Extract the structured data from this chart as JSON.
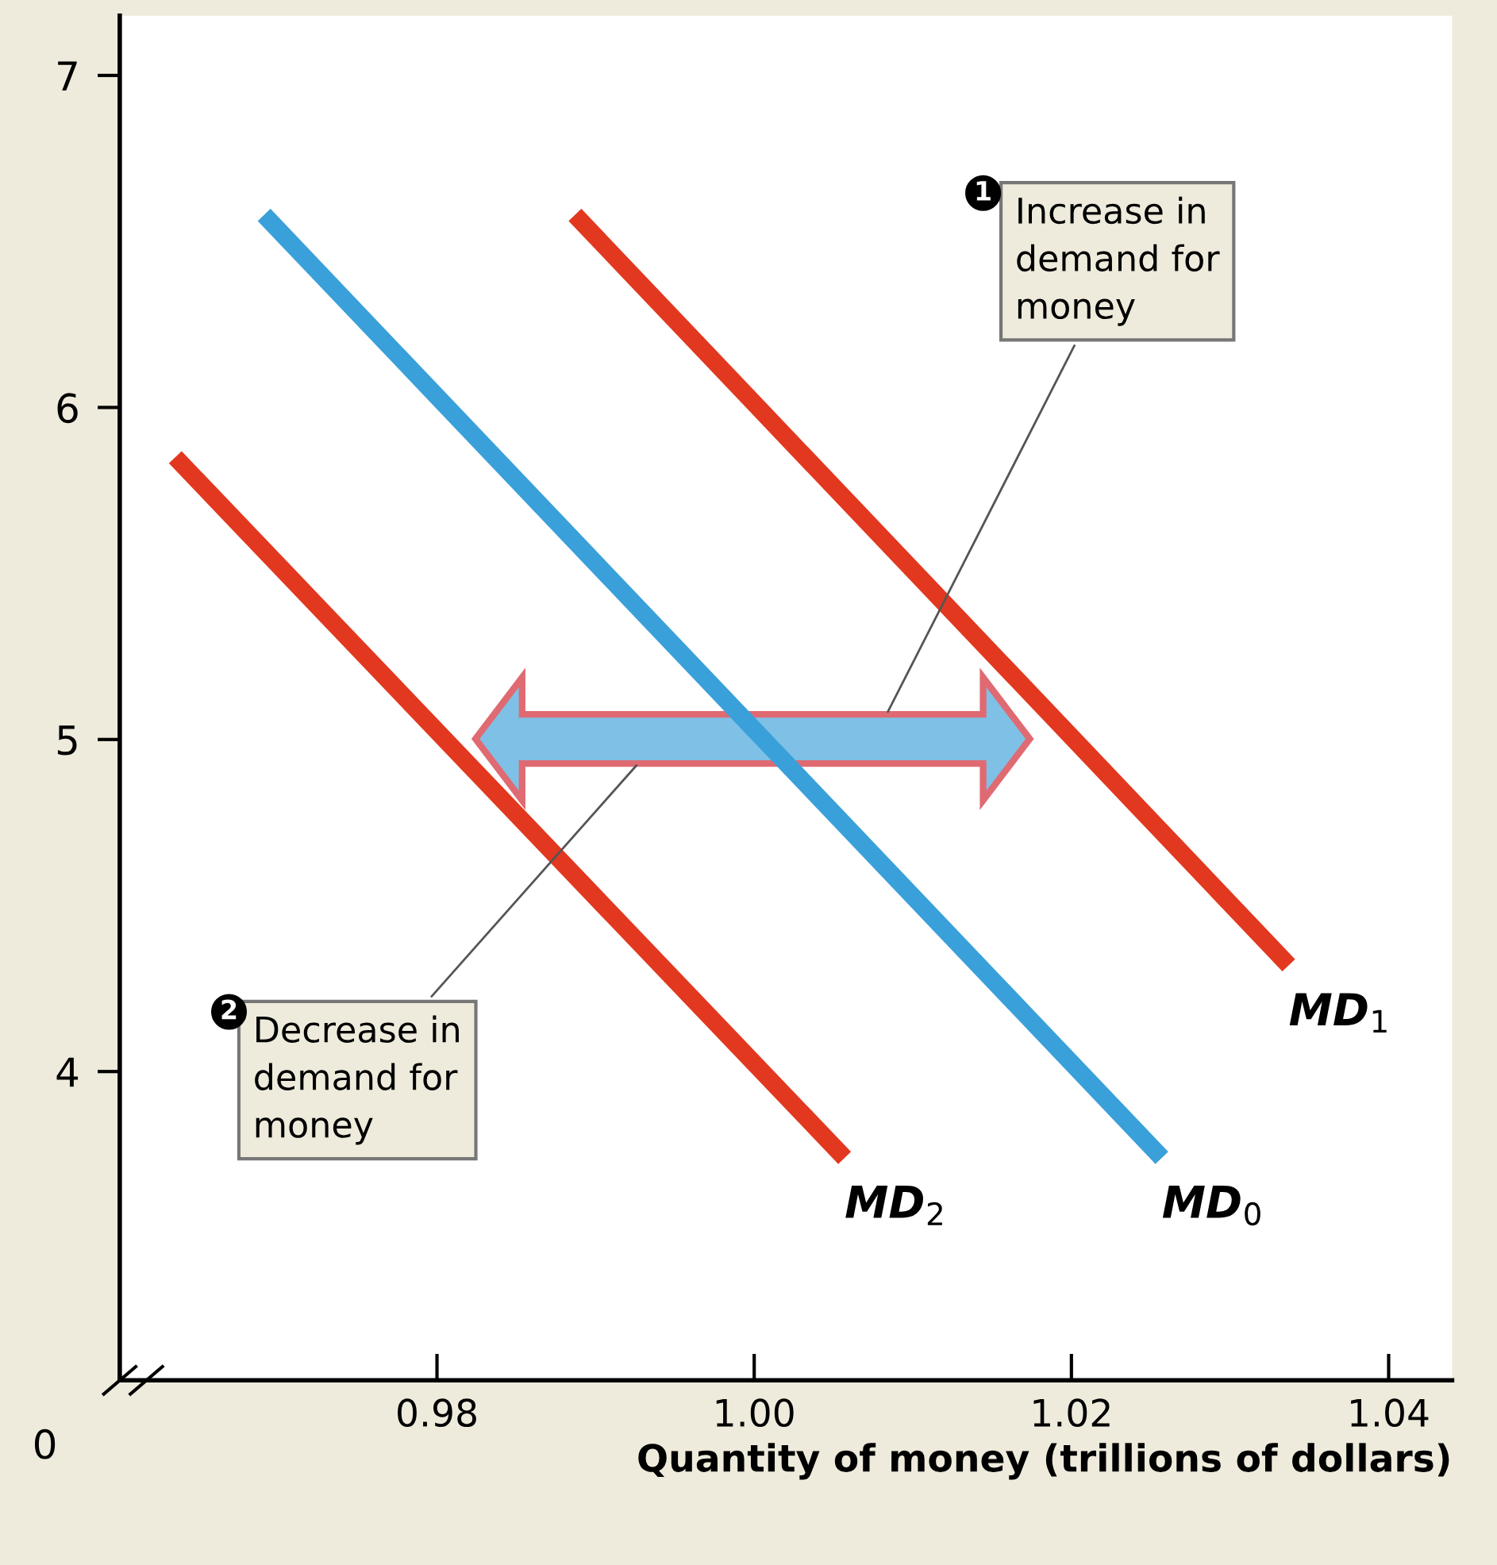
{
  "chart_data": {
    "type": "line",
    "xlabel": "Quantity of money (trillions of dollars)",
    "xlim": [
      0.96,
      1.044
    ],
    "ylim": [
      3.07,
      7.18
    ],
    "xticks": [
      0.98,
      {
        "value": 1.0,
        "label": "1.00"
      },
      1.02,
      1.04
    ],
    "yticks": [
      4,
      5,
      6,
      7
    ],
    "grid": false,
    "legend": false,
    "marker": "none",
    "line_style": "solid",
    "series": [
      {
        "name": "MD$_{1}$",
        "color": "#e2381f",
        "x": [
          0.9887,
          1.0337
        ],
        "values": [
          6.58,
          4.32
        ]
      },
      {
        "name": "MD$_{0}$",
        "color": "#3aa0da",
        "x": [
          0.9691,
          1.0257
        ],
        "values": [
          6.58,
          3.74
        ]
      },
      {
        "name": "MD$_{2}$",
        "color": "#e2381f",
        "x": [
          0.9635,
          1.0057
        ],
        "values": [
          5.85,
          3.74
        ]
      }
    ],
    "annotations": [
      "Increase in\ndemand for\nmoney",
      "Decrease in\ndemand for\nmoney",
      "1",
      "2",
      "0"
    ]
  }
}
